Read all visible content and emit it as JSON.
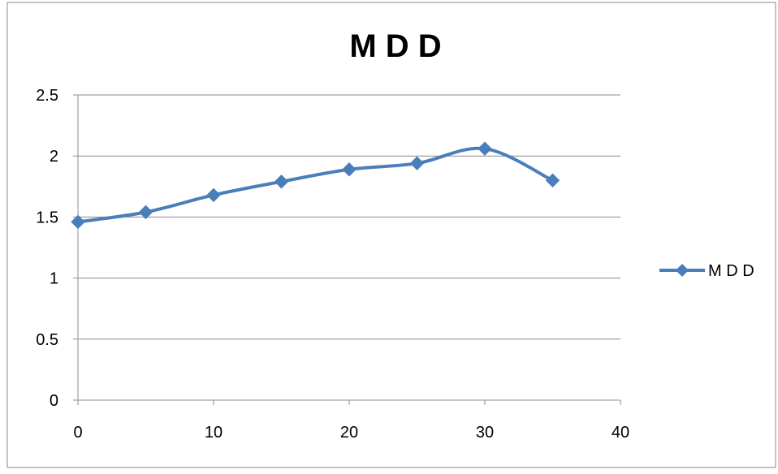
{
  "chart_data": {
    "type": "line",
    "title": "M D D",
    "xlabel": "",
    "ylabel": "",
    "xlim": [
      0,
      40
    ],
    "ylim": [
      0,
      2.5
    ],
    "x_ticks": [
      0,
      10,
      20,
      30,
      40
    ],
    "y_ticks": [
      0,
      0.5,
      1,
      1.5,
      2,
      2.5
    ],
    "x_tick_labels": [
      "0",
      "10",
      "20",
      "30",
      "40"
    ],
    "y_tick_labels": [
      "0",
      "0.5",
      "1",
      "1.5",
      "2",
      "2.5"
    ],
    "grid": "horizontal",
    "legend_position": "right",
    "smooth": true,
    "series": [
      {
        "name": "M D D",
        "color": "#4a7ebb",
        "marker": "diamond",
        "x": [
          0,
          5,
          10,
          15,
          20,
          25,
          30,
          35
        ],
        "y": [
          1.46,
          1.54,
          1.68,
          1.79,
          1.89,
          1.94,
          2.06,
          1.8
        ]
      }
    ]
  }
}
